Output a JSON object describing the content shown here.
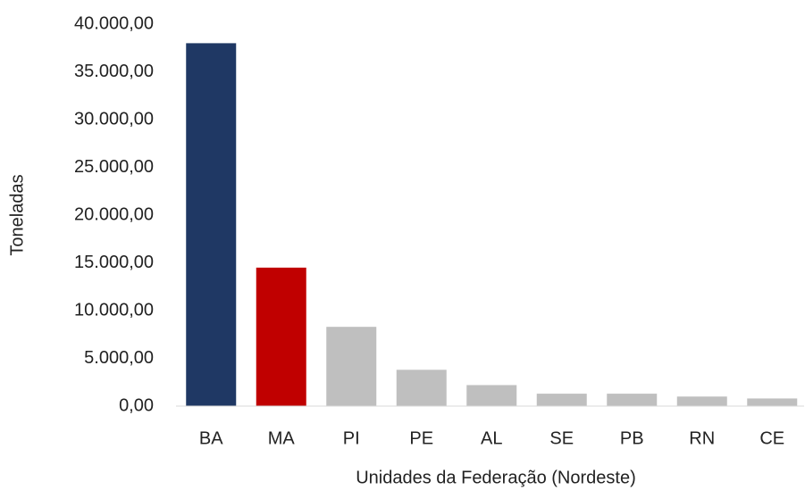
{
  "chart_data": {
    "type": "bar",
    "x_label": "Unidades da Federação (Nordeste)",
    "y_label": "Toneladas",
    "categories": [
      "BA",
      "MA",
      "PI",
      "PE",
      "AL",
      "SE",
      "PB",
      "RN",
      "CE"
    ],
    "values": [
      38000,
      14500,
      8300,
      3800,
      2200,
      1300,
      1300,
      1000,
      800
    ],
    "colors": [
      "#1f3864",
      "#c00000",
      "#bfbfbf",
      "#bfbfbf",
      "#bfbfbf",
      "#bfbfbf",
      "#bfbfbf",
      "#bfbfbf",
      "#bfbfbf"
    ],
    "ylim": [
      0,
      40000
    ],
    "yticks": [
      {
        "value": 0,
        "label": "0,00"
      },
      {
        "value": 5000,
        "label": "5.000,00"
      },
      {
        "value": 10000,
        "label": "10.000,00"
      },
      {
        "value": 15000,
        "label": "15.000,00"
      },
      {
        "value": 20000,
        "label": "20.000,00"
      },
      {
        "value": 25000,
        "label": "25.000,00"
      },
      {
        "value": 30000,
        "label": "30.000,00"
      },
      {
        "value": 35000,
        "label": "35.000,00"
      },
      {
        "value": 40000,
        "label": "40.000,00"
      }
    ],
    "grid": false
  }
}
